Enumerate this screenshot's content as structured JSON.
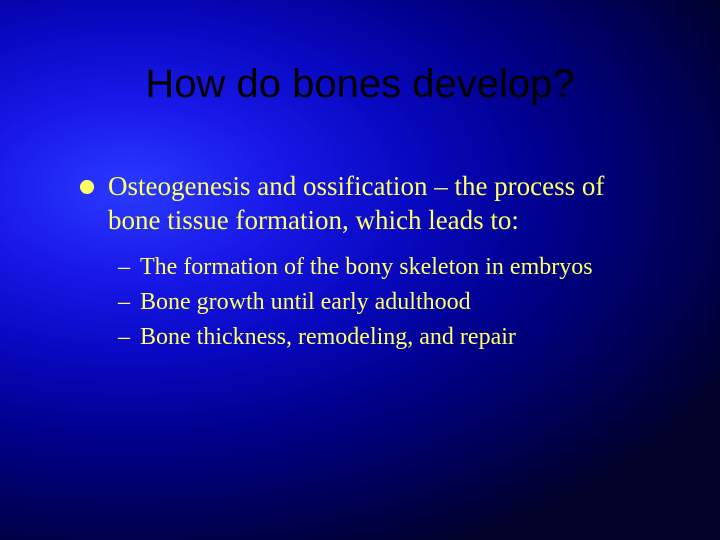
{
  "slide": {
    "title": "How do bones develop?",
    "background": {
      "type": "radial-gradient",
      "center": "18% 35%",
      "stops": [
        "#2a3aff",
        "#1818e8",
        "#0808c0",
        "#00008b",
        "#000050",
        "#000028"
      ]
    },
    "title_style": {
      "color": "#000000",
      "font_family": "Arial",
      "font_size_pt": 30
    },
    "body_style": {
      "color": "#ffff66",
      "font_family": "Times New Roman",
      "l1_font_size_pt": 20,
      "l2_font_size_pt": 18,
      "l1_bullet": "disc",
      "l2_bullet": "dash"
    },
    "body": {
      "l1": "Osteogenesis and ossification – the process of bone tissue formation, which leads to:",
      "l2": [
        "The formation of the bony skeleton in embryos",
        "Bone growth until early adulthood",
        "Bone thickness, remodeling, and repair"
      ]
    }
  }
}
